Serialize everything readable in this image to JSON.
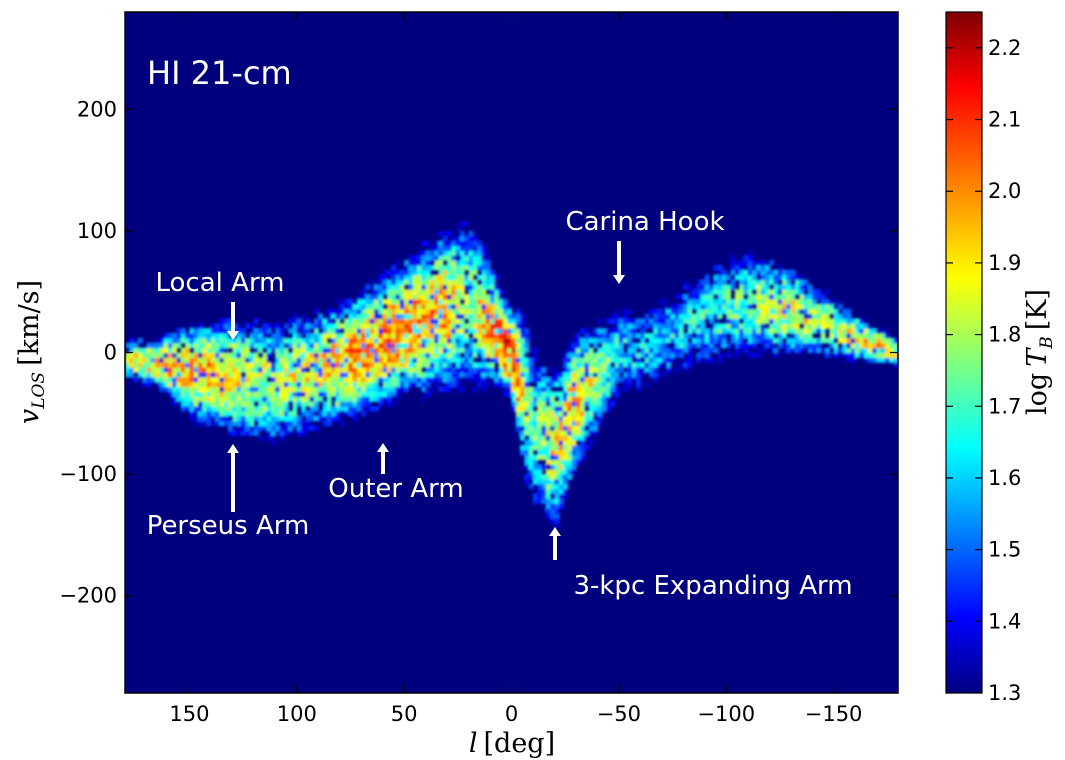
{
  "chart_data": {
    "type": "heatmap",
    "title": "HI 21-cm",
    "xlabel": "l [deg]",
    "ylabel": "v_LOS [km/s]",
    "xlim": [
      180,
      -180
    ],
    "ylim": [
      -280,
      280
    ],
    "x_ticks": [
      150,
      100,
      50,
      0,
      -50,
      -100,
      -150
    ],
    "y_ticks": [
      200,
      100,
      0,
      -100,
      -200
    ],
    "x_tick_labels": [
      "150",
      "100",
      "50",
      "0",
      "−50",
      "−100",
      "−150"
    ],
    "y_tick_labels": [
      "200",
      "100",
      "0",
      "−100",
      "−200"
    ],
    "colorbar": {
      "label": "log T_B [K]",
      "range": [
        1.3,
        2.25
      ],
      "ticks": [
        1.3,
        1.4,
        1.5,
        1.6,
        1.7,
        1.8,
        1.9,
        2.0,
        2.1,
        2.2
      ],
      "tick_labels": [
        "1.3",
        "1.4",
        "1.5",
        "1.6",
        "1.7",
        "1.8",
        "1.9",
        "2.0",
        "2.1",
        "2.2"
      ],
      "colormap": "jet"
    },
    "emission_ridge": {
      "l": [
        180,
        165,
        150,
        130,
        110,
        90,
        70,
        50,
        30,
        20,
        10,
        5,
        0,
        -5,
        -10,
        -20,
        -30,
        -50,
        -70,
        -90,
        -110,
        -130,
        -150,
        -165,
        -180
      ],
      "v_center": [
        -5,
        -8,
        -15,
        -20,
        -25,
        -15,
        0,
        20,
        35,
        40,
        25,
        10,
        0,
        -30,
        -60,
        -80,
        -40,
        0,
        10,
        30,
        40,
        35,
        20,
        10,
        0
      ],
      "v_half_width": [
        15,
        20,
        35,
        45,
        50,
        45,
        45,
        50,
        60,
        70,
        45,
        35,
        30,
        60,
        70,
        60,
        50,
        40,
        40,
        45,
        45,
        35,
        25,
        15,
        10
      ],
      "peak_log_tb": [
        2.0,
        2.05,
        2.1,
        2.05,
        1.95,
        2.05,
        2.15,
        2.15,
        2.1,
        1.9,
        2.15,
        2.2,
        2.25,
        2.05,
        1.85,
        2.05,
        2.1,
        1.8,
        1.75,
        1.8,
        1.9,
        2.0,
        1.95,
        2.05,
        2.1
      ]
    },
    "annotations": [
      {
        "text": "Local Arm",
        "l": 130,
        "v": 8
      },
      {
        "text": "Perseus Arm",
        "l": 130,
        "v": -75
      },
      {
        "text": "Outer Arm",
        "l": 60,
        "v": -75
      },
      {
        "text": "Carina Hook",
        "l": -50,
        "v": 55
      },
      {
        "text": "3-kpc Expanding Arm",
        "l": -25,
        "v": -145
      }
    ],
    "colors": {
      "background": "#00007f",
      "axis": "#000000",
      "annotation": "#ffffff"
    }
  }
}
